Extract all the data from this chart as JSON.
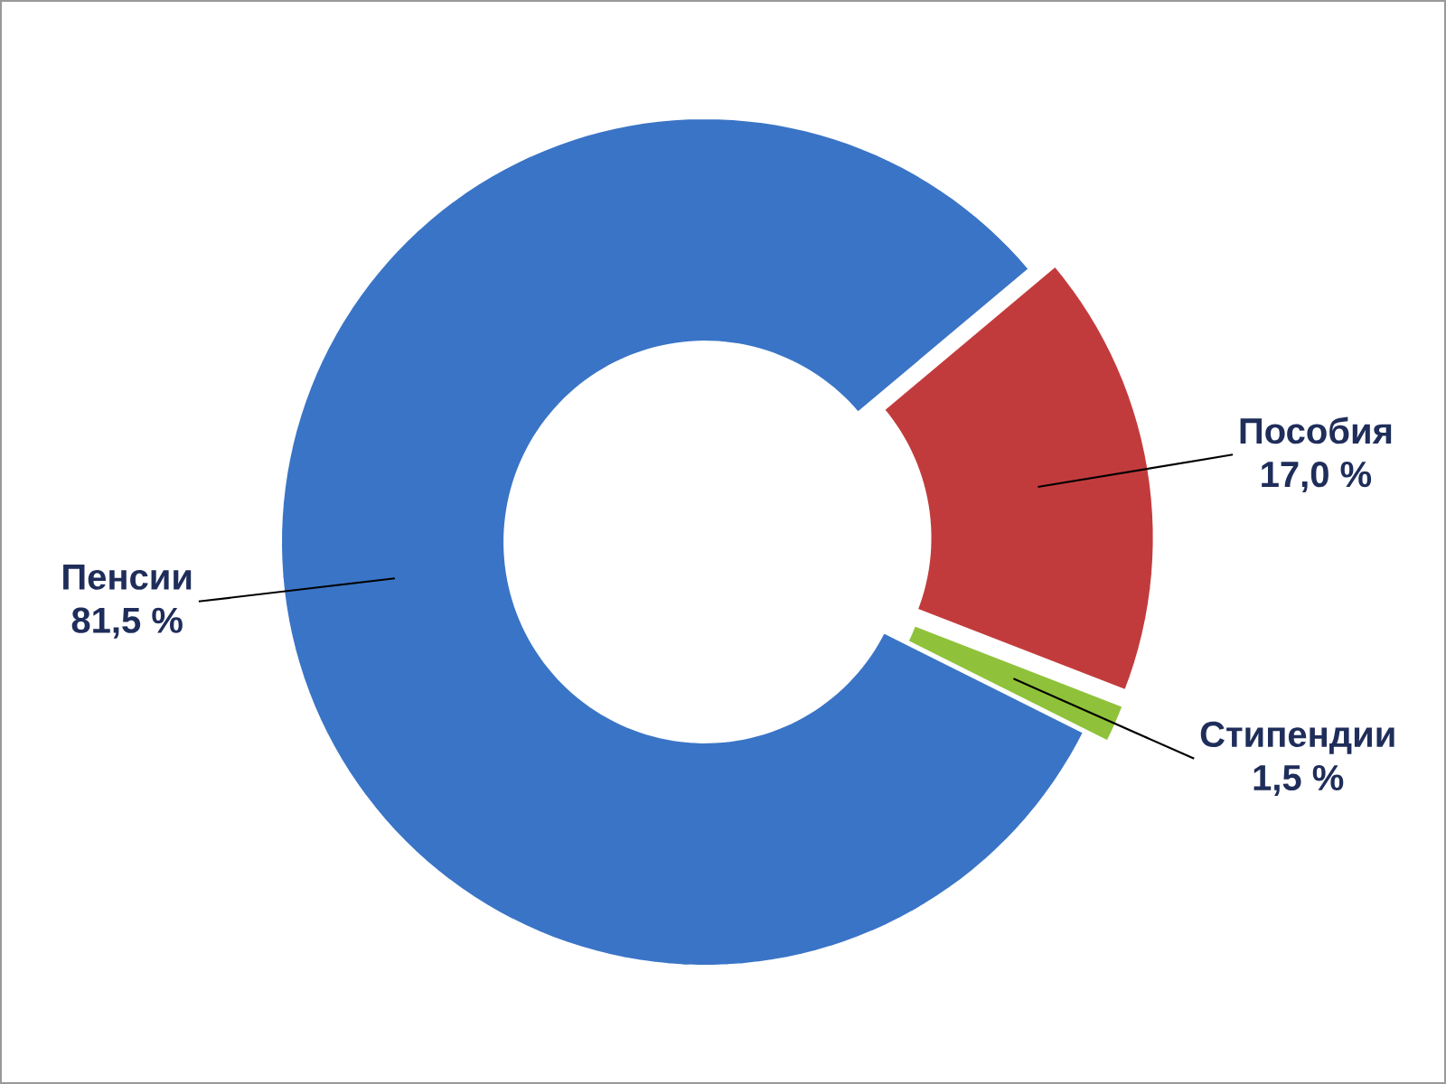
{
  "chart_data": {
    "type": "donut",
    "categories": [
      "Пенсии",
      "Пособия",
      "Стипендии"
    ],
    "values": [
      81.5,
      17.0,
      1.5
    ],
    "value_labels": [
      "81,5 %",
      "17,0 %",
      "1,5 %"
    ],
    "colors": [
      "#3a74c6",
      "#c23b3c",
      "#8fc23a"
    ]
  }
}
